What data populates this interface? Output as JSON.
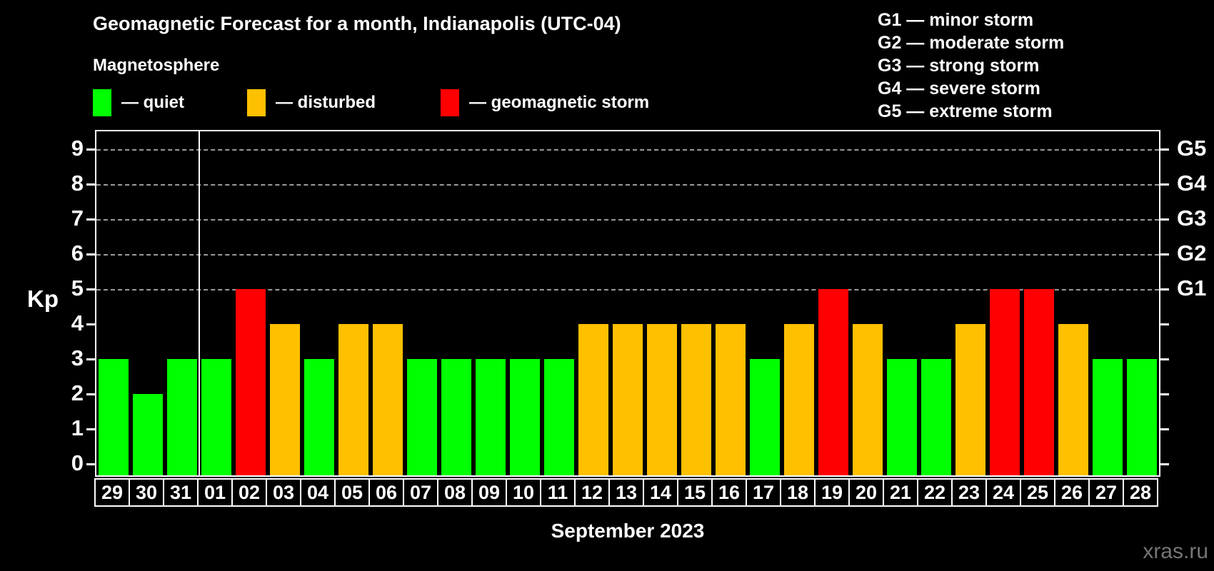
{
  "watermark": "xras.ru",
  "chart_data": {
    "type": "bar",
    "title": "Geomagnetic Forecast for a month, Indianapolis (UTC-04)",
    "subtitle": "Magnetosphere",
    "xlabel": "September 2023",
    "ylabel": "Kp",
    "ylim": [
      0,
      9.6
    ],
    "yticks": [
      0,
      1,
      2,
      3,
      4,
      5,
      6,
      7,
      8,
      9
    ],
    "grid": "dashed horizontal lines at Kp 5-9 only",
    "gridlines_kp": [
      5,
      6,
      7,
      8,
      9
    ],
    "right_axis": [
      {
        "kp": 5,
        "label": "G1"
      },
      {
        "kp": 6,
        "label": "G2"
      },
      {
        "kp": 7,
        "label": "G3"
      },
      {
        "kp": 8,
        "label": "G4"
      },
      {
        "kp": 9,
        "label": "G5"
      }
    ],
    "legend": {
      "items": [
        {
          "status": "quiet",
          "label": "— quiet",
          "color": "#00ff00"
        },
        {
          "status": "disturbed",
          "label": "— disturbed",
          "color": "#ffc000"
        },
        {
          "status": "storm",
          "label": "— geomagnetic storm",
          "color": "#ff0000"
        }
      ],
      "g_scale": [
        "G1 — minor storm",
        "G2 — moderate storm",
        "G3 — strong storm",
        "G4 — severe storm",
        "G5 — extreme storm"
      ]
    },
    "status_colors": {
      "quiet": "#00ff00",
      "disturbed": "#ffc000",
      "storm": "#ff0000"
    },
    "month_separator_after": "31",
    "days": [
      {
        "label": "29",
        "kp": 3,
        "status": "quiet"
      },
      {
        "label": "30",
        "kp": 2,
        "status": "quiet"
      },
      {
        "label": "31",
        "kp": 3,
        "status": "quiet"
      },
      {
        "label": "01",
        "kp": 3,
        "status": "quiet"
      },
      {
        "label": "02",
        "kp": 5,
        "status": "storm"
      },
      {
        "label": "03",
        "kp": 4,
        "status": "disturbed"
      },
      {
        "label": "04",
        "kp": 3,
        "status": "quiet"
      },
      {
        "label": "05",
        "kp": 4,
        "status": "disturbed"
      },
      {
        "label": "06",
        "kp": 4,
        "status": "disturbed"
      },
      {
        "label": "07",
        "kp": 3,
        "status": "quiet"
      },
      {
        "label": "08",
        "kp": 3,
        "status": "quiet"
      },
      {
        "label": "09",
        "kp": 3,
        "status": "quiet"
      },
      {
        "label": "10",
        "kp": 3,
        "status": "quiet"
      },
      {
        "label": "11",
        "kp": 3,
        "status": "quiet"
      },
      {
        "label": "12",
        "kp": 4,
        "status": "disturbed"
      },
      {
        "label": "13",
        "kp": 4,
        "status": "disturbed"
      },
      {
        "label": "14",
        "kp": 4,
        "status": "disturbed"
      },
      {
        "label": "15",
        "kp": 4,
        "status": "disturbed"
      },
      {
        "label": "16",
        "kp": 4,
        "status": "disturbed"
      },
      {
        "label": "17",
        "kp": 3,
        "status": "quiet"
      },
      {
        "label": "18",
        "kp": 4,
        "status": "disturbed"
      },
      {
        "label": "19",
        "kp": 5,
        "status": "storm"
      },
      {
        "label": "20",
        "kp": 4,
        "status": "disturbed"
      },
      {
        "label": "21",
        "kp": 3,
        "status": "quiet"
      },
      {
        "label": "22",
        "kp": 3,
        "status": "quiet"
      },
      {
        "label": "23",
        "kp": 4,
        "status": "disturbed"
      },
      {
        "label": "24",
        "kp": 5,
        "status": "storm"
      },
      {
        "label": "25",
        "kp": 5,
        "status": "storm"
      },
      {
        "label": "26",
        "kp": 4,
        "status": "disturbed"
      },
      {
        "label": "27",
        "kp": 3,
        "status": "quiet"
      },
      {
        "label": "28",
        "kp": 3,
        "status": "quiet"
      }
    ]
  }
}
